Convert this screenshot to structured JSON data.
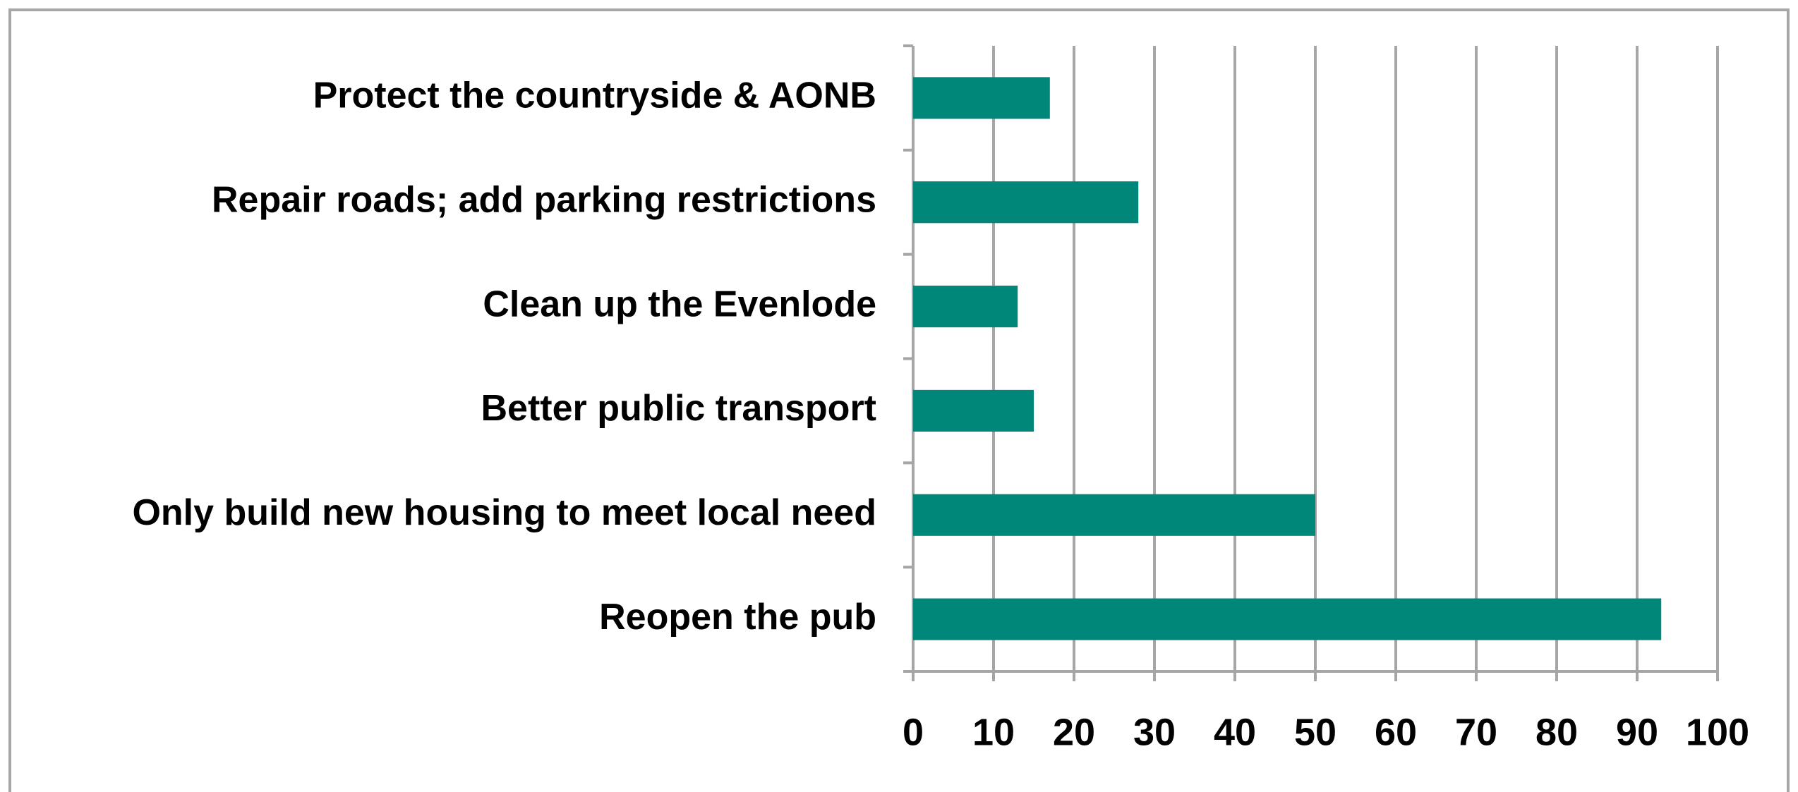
{
  "chart_data": {
    "type": "bar",
    "orientation": "horizontal",
    "categories": [
      "Protect the countryside & AONB",
      "Repair roads; add parking restrictions",
      "Clean up the Evenlode",
      "Better public transport",
      "Only build new housing to meet local need",
      "Reopen the pub"
    ],
    "values": [
      17,
      28,
      13,
      15,
      50,
      93
    ],
    "color": "#00877a",
    "xlim": [
      0,
      100
    ],
    "xticks": [
      0,
      10,
      20,
      30,
      40,
      50,
      60,
      70,
      80,
      90,
      100
    ],
    "grid": true
  }
}
